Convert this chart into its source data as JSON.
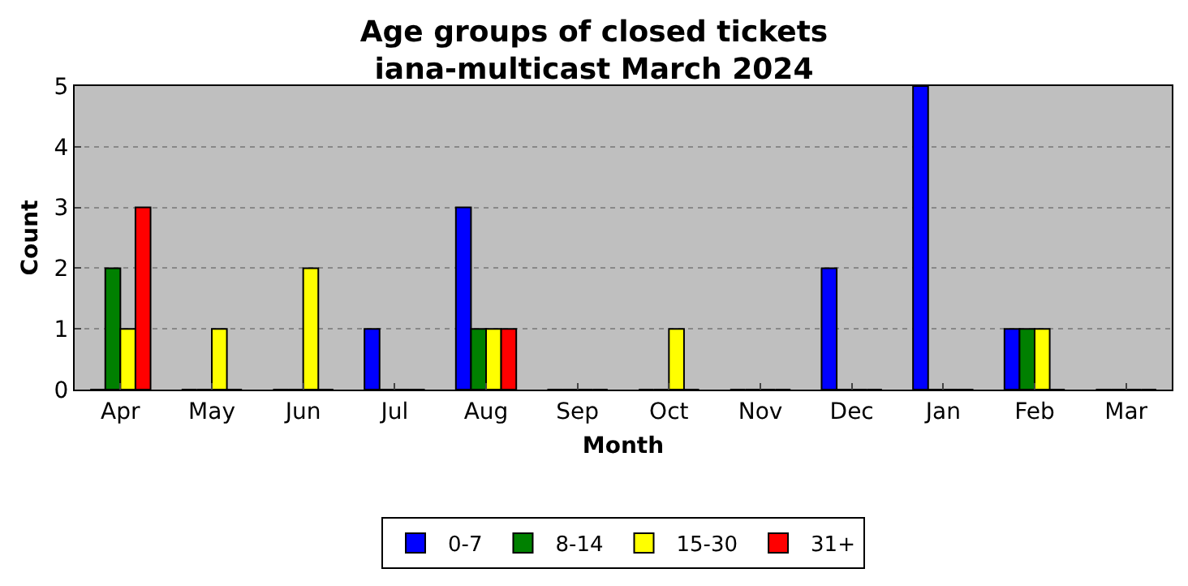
{
  "chart_data": {
    "type": "bar",
    "title": "Age groups of closed tickets\niana-multicast March 2024",
    "xlabel": "Month",
    "ylabel": "Count",
    "categories": [
      "Apr",
      "May",
      "Jun",
      "Jul",
      "Aug",
      "Sep",
      "Oct",
      "Nov",
      "Dec",
      "Jan",
      "Feb",
      "Mar"
    ],
    "series": [
      {
        "name": "0-7",
        "color": "#0000ff",
        "values": [
          0,
          0,
          0,
          1,
          3,
          0,
          0,
          0,
          2,
          5,
          1,
          0
        ]
      },
      {
        "name": "8-14",
        "color": "#008000",
        "values": [
          2,
          0,
          0,
          0,
          1,
          0,
          0,
          0,
          0,
          0,
          1,
          0
        ]
      },
      {
        "name": "15-30",
        "color": "#ffff00",
        "values": [
          1,
          1,
          2,
          0,
          1,
          0,
          1,
          0,
          0,
          0,
          1,
          0
        ]
      },
      {
        "name": "31+",
        "color": "#ff0000",
        "values": [
          3,
          0,
          0,
          0,
          1,
          0,
          0,
          0,
          0,
          0,
          0,
          0
        ]
      }
    ],
    "ylim": [
      0,
      5
    ],
    "yticks": [
      0,
      1,
      2,
      3,
      4,
      5
    ],
    "grid": "y",
    "legend": "bottom"
  }
}
